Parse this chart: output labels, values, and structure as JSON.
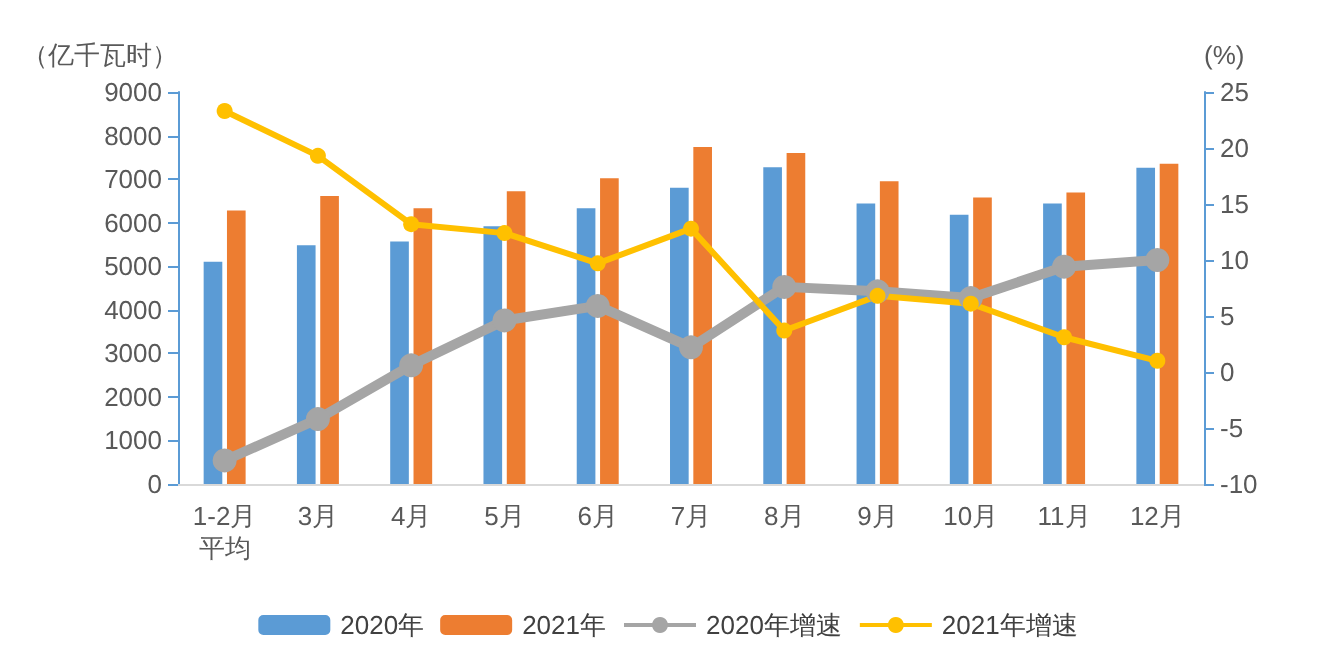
{
  "chart_data": {
    "type": "bar",
    "ylabel": "（亿千瓦时）",
    "y2label": "(%)",
    "categories": [
      "1-2月平均",
      "3月",
      "4月",
      "5月",
      "6月",
      "7月",
      "8月",
      "9月",
      "10月",
      "11月",
      "12月"
    ],
    "series": [
      {
        "name": "2020年",
        "color": "#5b9bd5",
        "values": [
          5100,
          5480,
          5570,
          5920,
          6330,
          6800,
          7270,
          6440,
          6180,
          6440,
          7260
        ]
      },
      {
        "name": "2021年",
        "color": "#ed7d31",
        "values": [
          6280,
          6610,
          6330,
          6720,
          7020,
          7740,
          7600,
          6950,
          6580,
          6690,
          7350
        ]
      },
      {
        "name": "2020年增速",
        "type": "line",
        "axis": "y2",
        "color": "#a5a5a5",
        "values": [
          -7.9,
          -4.2,
          0.6,
          4.6,
          5.9,
          2.2,
          7.6,
          7.2,
          6.6,
          9.4,
          10.0
        ]
      },
      {
        "name": "2021年增速",
        "type": "line",
        "axis": "y2",
        "color": "#ffc000",
        "values": [
          23.3,
          19.3,
          13.2,
          12.4,
          9.7,
          12.8,
          3.7,
          6.8,
          6.1,
          3.1,
          1.0
        ]
      }
    ],
    "ylim": [
      0,
      9000
    ],
    "yticks": [
      0,
      1000,
      2000,
      3000,
      4000,
      5000,
      6000,
      7000,
      8000,
      9000
    ],
    "y2lim": [
      -10,
      25
    ],
    "y2ticks": [
      -10,
      -5,
      0,
      5,
      10,
      15,
      20,
      25
    ],
    "grid": false,
    "legend": "bottom",
    "marker": "circle",
    "line_style": "solid"
  }
}
